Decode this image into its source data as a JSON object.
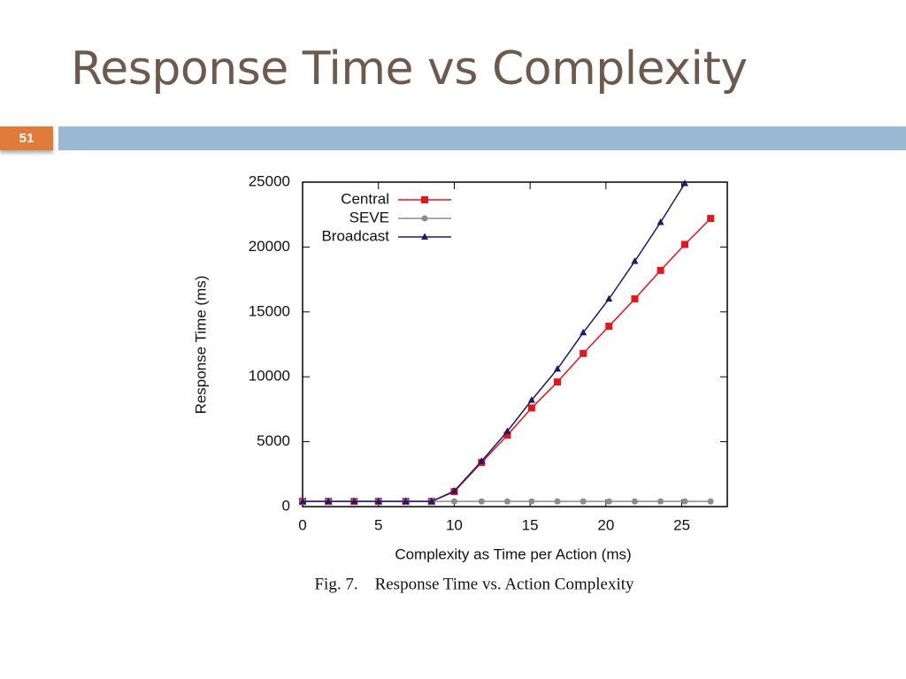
{
  "slide": {
    "title": "Response Time vs Complexity",
    "number": "51"
  },
  "chart_data": {
    "type": "line",
    "x": [
      0,
      1.7,
      3.4,
      5.0,
      6.8,
      8.5,
      10,
      11.8,
      13.5,
      15.1,
      16.8,
      18.5,
      20.2,
      21.9,
      23.6,
      25.2,
      26.9
    ],
    "series": [
      {
        "name": "Central",
        "color": "#e8141c",
        "marker": "square",
        "values": [
          400,
          400,
          400,
          400,
          400,
          400,
          1150,
          3400,
          5500,
          7600,
          9600,
          11800,
          13900,
          16000,
          18200,
          20200,
          22200
        ]
      },
      {
        "name": "SEVE",
        "color": "#8c8c8c",
        "marker": "circle",
        "values": [
          400,
          400,
          400,
          400,
          400,
          400,
          400,
          400,
          400,
          400,
          400,
          400,
          400,
          400,
          400,
          400,
          400
        ]
      },
      {
        "name": "Broadcast",
        "color": "#1a1a6e",
        "marker": "triangle",
        "values": [
          400,
          400,
          400,
          400,
          400,
          400,
          1200,
          3500,
          5800,
          8200,
          10600,
          13400,
          16000,
          18900,
          21900,
          24900,
          null
        ]
      }
    ],
    "xlabel": "Complexity as Time per Action (ms)",
    "ylabel": "Response Time (ms)",
    "caption": "Fig. 7.    Response Time vs. Action Complexity",
    "xlim": [
      0,
      28
    ],
    "ylim": [
      0,
      25000
    ],
    "xticks": [
      0,
      5,
      10,
      15,
      20,
      25
    ],
    "yticks": [
      0,
      5000,
      10000,
      15000,
      20000,
      25000
    ],
    "grid": false,
    "legend": "top-left"
  }
}
